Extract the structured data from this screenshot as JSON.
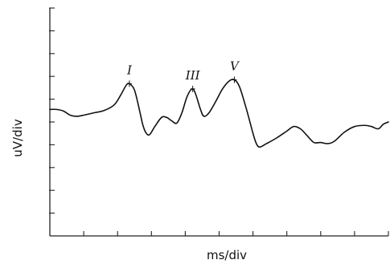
{
  "chart_data": {
    "type": "line",
    "title": "",
    "xlabel": "ms/div",
    "ylabel": "uV/div",
    "xlim": [
      0,
      10
    ],
    "ylim": [
      -5,
      5
    ],
    "x_divisions": 10,
    "y_divisions": 10,
    "grid": false,
    "legend": "none",
    "tick_labels_shown": false,
    "series": [
      {
        "color": "#111111",
        "points": [
          [
            0.0,
            0.55
          ],
          [
            0.2,
            0.55
          ],
          [
            0.4,
            0.48
          ],
          [
            0.6,
            0.3
          ],
          [
            0.8,
            0.25
          ],
          [
            1.0,
            0.3
          ],
          [
            1.3,
            0.4
          ],
          [
            1.6,
            0.5
          ],
          [
            1.9,
            0.75
          ],
          [
            2.1,
            1.2
          ],
          [
            2.25,
            1.6
          ],
          [
            2.35,
            1.68
          ],
          [
            2.5,
            1.4
          ],
          [
            2.65,
            0.5
          ],
          [
            2.75,
            -0.15
          ],
          [
            2.85,
            -0.5
          ],
          [
            2.95,
            -0.55
          ],
          [
            3.1,
            -0.2
          ],
          [
            3.3,
            0.2
          ],
          [
            3.45,
            0.2
          ],
          [
            3.6,
            0.05
          ],
          [
            3.75,
            -0.05
          ],
          [
            3.9,
            0.4
          ],
          [
            4.05,
            1.1
          ],
          [
            4.2,
            1.45
          ],
          [
            4.3,
            1.25
          ],
          [
            4.45,
            0.55
          ],
          [
            4.55,
            0.25
          ],
          [
            4.7,
            0.4
          ],
          [
            4.9,
            0.9
          ],
          [
            5.1,
            1.45
          ],
          [
            5.3,
            1.8
          ],
          [
            5.45,
            1.85
          ],
          [
            5.6,
            1.55
          ],
          [
            5.8,
            0.6
          ],
          [
            6.0,
            -0.5
          ],
          [
            6.1,
            -0.95
          ],
          [
            6.2,
            -1.1
          ],
          [
            6.4,
            -0.95
          ],
          [
            6.7,
            -0.7
          ],
          [
            7.0,
            -0.4
          ],
          [
            7.2,
            -0.2
          ],
          [
            7.4,
            -0.3
          ],
          [
            7.6,
            -0.6
          ],
          [
            7.8,
            -0.9
          ],
          [
            8.0,
            -0.9
          ],
          [
            8.2,
            -0.95
          ],
          [
            8.4,
            -0.85
          ],
          [
            8.7,
            -0.45
          ],
          [
            9.0,
            -0.2
          ],
          [
            9.3,
            -0.15
          ],
          [
            9.5,
            -0.2
          ],
          [
            9.7,
            -0.3
          ],
          [
            9.85,
            -0.1
          ],
          [
            10.0,
            0.0
          ]
        ]
      }
    ],
    "annotations": [
      {
        "label": "I",
        "x": 2.35,
        "y": 1.68
      },
      {
        "label": "III",
        "x": 4.22,
        "y": 1.45
      },
      {
        "label": "V",
        "x": 5.45,
        "y": 1.85
      }
    ]
  }
}
